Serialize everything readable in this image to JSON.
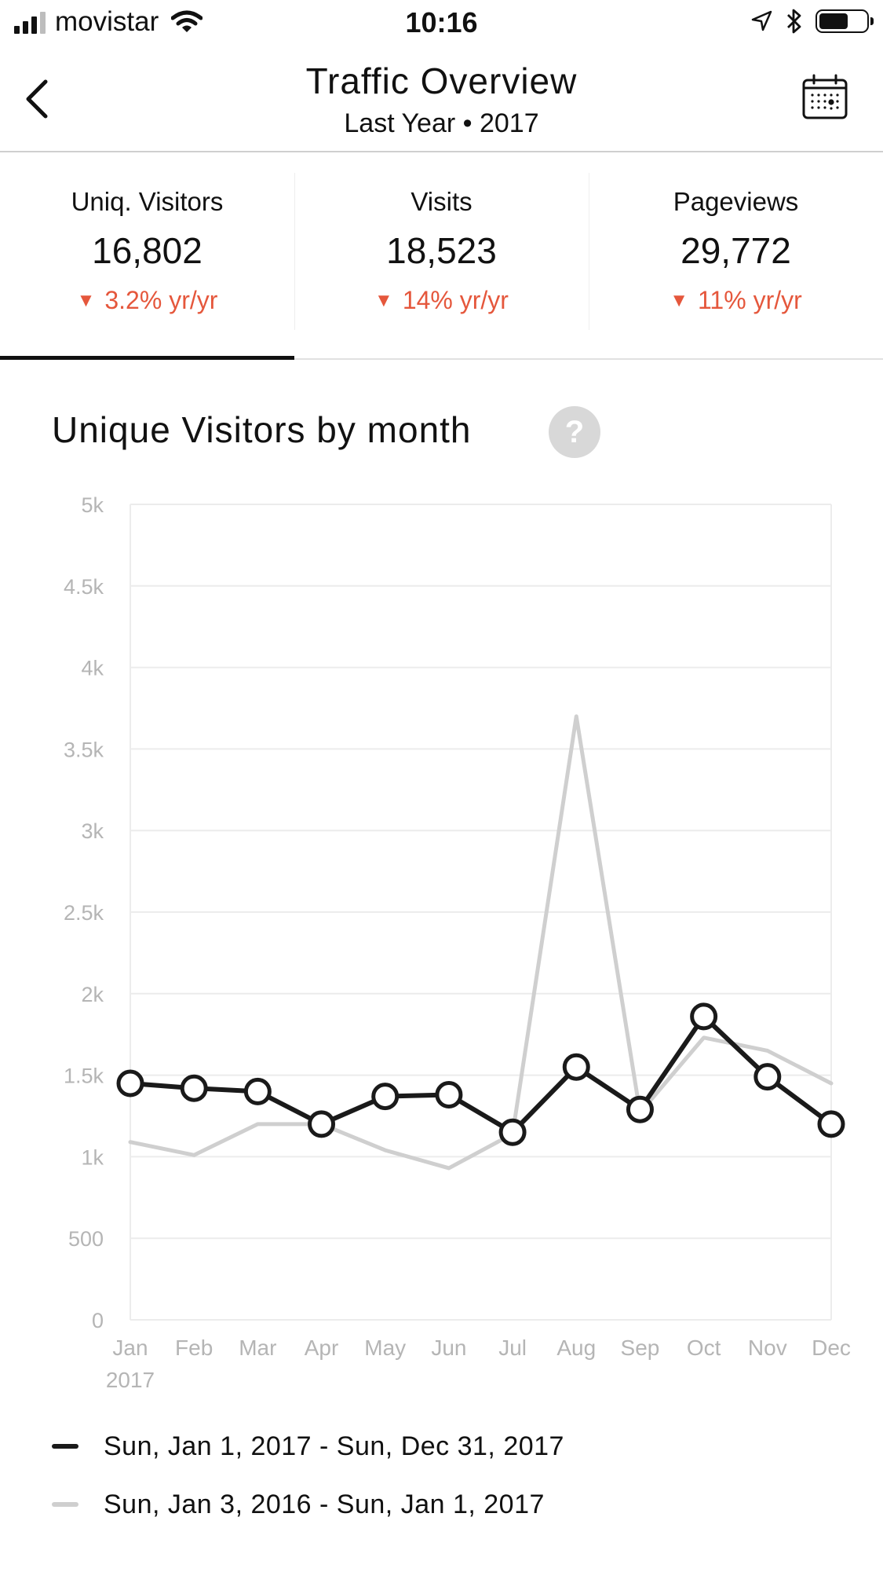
{
  "status_bar": {
    "carrier": "movistar",
    "time": "10:16"
  },
  "nav": {
    "title": "Traffic Overview",
    "subtitle": "Last Year • 2017"
  },
  "stats": [
    {
      "label": "Uniq. Visitors",
      "value": "16,802",
      "change": "3.2% yr/yr",
      "active": true
    },
    {
      "label": "Visits",
      "value": "18,523",
      "change": "14% yr/yr",
      "active": false
    },
    {
      "label": "Pageviews",
      "value": "29,772",
      "change": "11% yr/yr",
      "active": false
    }
  ],
  "chart_section": {
    "title": "Unique Visitors by month",
    "help": "?"
  },
  "colors": {
    "current": "#1a1a1a",
    "previous": "#cfcfcf",
    "negative": "#e5573c",
    "grid": "#ececec",
    "axis_text": "#b5b5b5"
  },
  "chart_data": {
    "type": "line",
    "categories": [
      "Jan",
      "Feb",
      "Mar",
      "Apr",
      "May",
      "Jun",
      "Jul",
      "Aug",
      "Sep",
      "Oct",
      "Nov",
      "Dec"
    ],
    "x_year_label": "2017",
    "yticks": [
      "0",
      "500",
      "1k",
      "1.5k",
      "2k",
      "2.5k",
      "3k",
      "3.5k",
      "4k",
      "4.5k",
      "5k"
    ],
    "ylim": [
      0,
      5000
    ],
    "grid": true,
    "legend_position": "bottom",
    "series": [
      {
        "name": "Sun, Jan 1, 2017 - Sun, Dec 31, 2017",
        "markers": true,
        "values": [
          1450,
          1420,
          1400,
          1200,
          1370,
          1380,
          1150,
          1550,
          1290,
          1860,
          1490,
          1200
        ]
      },
      {
        "name": "Sun, Jan 3, 2016 - Sun, Jan 1, 2017",
        "markers": false,
        "values": [
          1090,
          1010,
          1200,
          1200,
          1040,
          930,
          1140,
          3700,
          1270,
          1730,
          1650,
          1450
        ]
      }
    ]
  }
}
